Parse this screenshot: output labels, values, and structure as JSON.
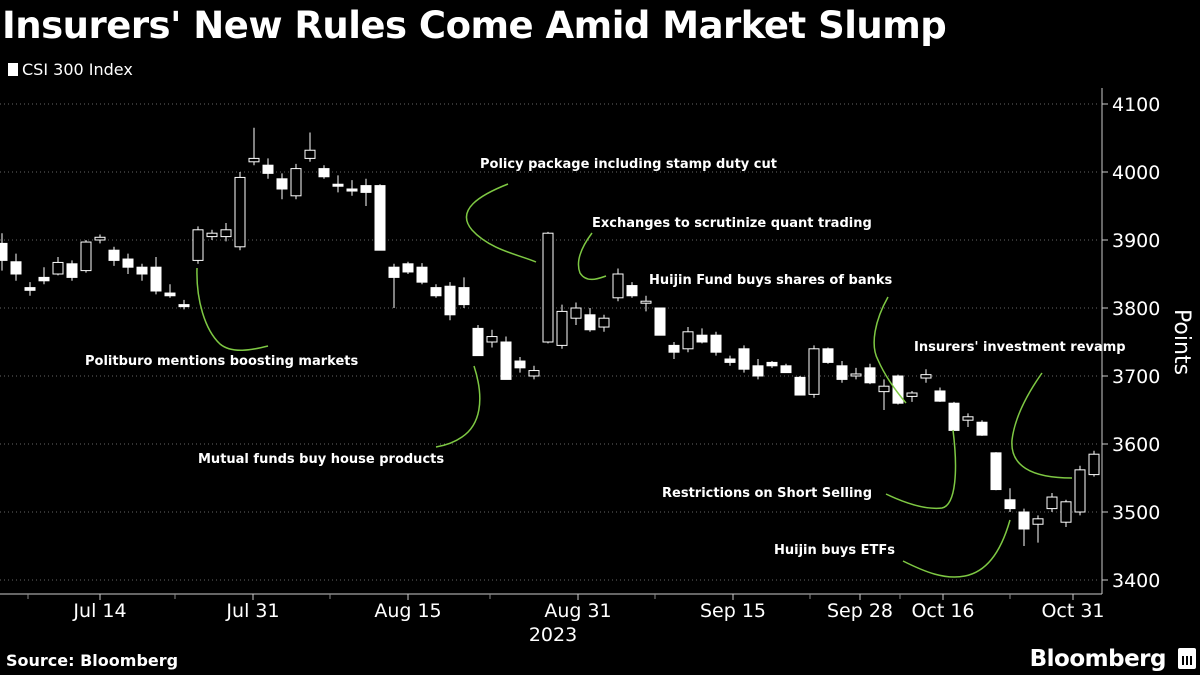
{
  "chart_data": {
    "type": "candlestick",
    "title": "Insurers' New Rules Come Amid Market Slump",
    "legend": [
      {
        "name": "CSI 300 Index",
        "color": "#ffffff"
      }
    ],
    "ylabel": "Points",
    "ylim": [
      3380,
      4120
    ],
    "yticks": [
      3400,
      3500,
      3600,
      3700,
      3800,
      3900,
      4000,
      4100
    ],
    "xlabels": [
      "Jul 14",
      "Jul 31",
      "Aug 15",
      "Aug 31",
      "Sep 15",
      "Sep 28",
      "Oct 16",
      "Oct 31"
    ],
    "xlabel_year": "2023",
    "candles": [
      {
        "o": 3895,
        "h": 3910,
        "l": 3855,
        "c": 3870
      },
      {
        "o": 3868,
        "h": 3880,
        "l": 3840,
        "c": 3850
      },
      {
        "o": 3830,
        "h": 3838,
        "l": 3818,
        "c": 3826
      },
      {
        "o": 3845,
        "h": 3860,
        "l": 3835,
        "c": 3840
      },
      {
        "o": 3850,
        "h": 3875,
        "l": 3848,
        "c": 3867
      },
      {
        "o": 3865,
        "h": 3870,
        "l": 3840,
        "c": 3845
      },
      {
        "o": 3855,
        "h": 3900,
        "l": 3852,
        "c": 3897
      },
      {
        "o": 3900,
        "h": 3908,
        "l": 3895,
        "c": 3904
      },
      {
        "o": 3885,
        "h": 3890,
        "l": 3862,
        "c": 3870
      },
      {
        "o": 3872,
        "h": 3880,
        "l": 3850,
        "c": 3860
      },
      {
        "o": 3860,
        "h": 3865,
        "l": 3840,
        "c": 3850
      },
      {
        "o": 3860,
        "h": 3875,
        "l": 3820,
        "c": 3825
      },
      {
        "o": 3822,
        "h": 3835,
        "l": 3815,
        "c": 3818
      },
      {
        "o": 3805,
        "h": 3812,
        "l": 3798,
        "c": 3802
      },
      {
        "o": 3870,
        "h": 3920,
        "l": 3865,
        "c": 3915
      },
      {
        "o": 3905,
        "h": 3915,
        "l": 3900,
        "c": 3910
      },
      {
        "o": 3905,
        "h": 3925,
        "l": 3898,
        "c": 3915
      },
      {
        "o": 3890,
        "h": 4000,
        "l": 3885,
        "c": 3992
      },
      {
        "o": 4015,
        "h": 4065,
        "l": 4010,
        "c": 4020
      },
      {
        "o": 4010,
        "h": 4020,
        "l": 3990,
        "c": 3998
      },
      {
        "o": 3990,
        "h": 3998,
        "l": 3960,
        "c": 3975
      },
      {
        "o": 3965,
        "h": 4012,
        "l": 3960,
        "c": 4005
      },
      {
        "o": 4020,
        "h": 4058,
        "l": 4015,
        "c": 4032
      },
      {
        "o": 4005,
        "h": 4010,
        "l": 3990,
        "c": 3993
      },
      {
        "o": 3982,
        "h": 3995,
        "l": 3970,
        "c": 3980
      },
      {
        "o": 3975,
        "h": 3988,
        "l": 3965,
        "c": 3972
      },
      {
        "o": 3980,
        "h": 3990,
        "l": 3950,
        "c": 3970
      },
      {
        "o": 3980,
        "h": 3982,
        "l": 3885,
        "c": 3885
      },
      {
        "o": 3860,
        "h": 3865,
        "l": 3800,
        "c": 3845
      },
      {
        "o": 3865,
        "h": 3868,
        "l": 3850,
        "c": 3853
      },
      {
        "o": 3860,
        "h": 3866,
        "l": 3835,
        "c": 3838
      },
      {
        "o": 3830,
        "h": 3835,
        "l": 3815,
        "c": 3818
      },
      {
        "o": 3832,
        "h": 3838,
        "l": 3782,
        "c": 3790
      },
      {
        "o": 3830,
        "h": 3845,
        "l": 3800,
        "c": 3805
      },
      {
        "o": 3770,
        "h": 3775,
        "l": 3730,
        "c": 3730
      },
      {
        "o": 3750,
        "h": 3768,
        "l": 3742,
        "c": 3758
      },
      {
        "o": 3750,
        "h": 3758,
        "l": 3695,
        "c": 3695
      },
      {
        "o": 3722,
        "h": 3728,
        "l": 3705,
        "c": 3712
      },
      {
        "o": 3700,
        "h": 3715,
        "l": 3695,
        "c": 3708
      },
      {
        "o": 3750,
        "h": 3912,
        "l": 3748,
        "c": 3910
      },
      {
        "o": 3745,
        "h": 3805,
        "l": 3740,
        "c": 3795
      },
      {
        "o": 3785,
        "h": 3808,
        "l": 3775,
        "c": 3800
      },
      {
        "o": 3790,
        "h": 3800,
        "l": 3765,
        "c": 3768
      },
      {
        "o": 3772,
        "h": 3790,
        "l": 3765,
        "c": 3785
      },
      {
        "o": 3815,
        "h": 3858,
        "l": 3810,
        "c": 3850
      },
      {
        "o": 3833,
        "h": 3838,
        "l": 3815,
        "c": 3818
      },
      {
        "o": 3810,
        "h": 3818,
        "l": 3795,
        "c": 3810
      },
      {
        "o": 3800,
        "h": 3800,
        "l": 3760,
        "c": 3760
      },
      {
        "o": 3745,
        "h": 3750,
        "l": 3725,
        "c": 3735
      },
      {
        "o": 3740,
        "h": 3772,
        "l": 3735,
        "c": 3765
      },
      {
        "o": 3760,
        "h": 3770,
        "l": 3748,
        "c": 3750
      },
      {
        "o": 3760,
        "h": 3765,
        "l": 3730,
        "c": 3735
      },
      {
        "o": 3725,
        "h": 3730,
        "l": 3715,
        "c": 3720
      },
      {
        "o": 3740,
        "h": 3745,
        "l": 3705,
        "c": 3710
      },
      {
        "o": 3715,
        "h": 3725,
        "l": 3695,
        "c": 3700
      },
      {
        "o": 3720,
        "h": 3722,
        "l": 3712,
        "c": 3715
      },
      {
        "o": 3715,
        "h": 3718,
        "l": 3705,
        "c": 3705
      },
      {
        "o": 3698,
        "h": 3700,
        "l": 3672,
        "c": 3672
      },
      {
        "o": 3673,
        "h": 3745,
        "l": 3668,
        "c": 3740
      },
      {
        "o": 3740,
        "h": 3742,
        "l": 3718,
        "c": 3720
      },
      {
        "o": 3715,
        "h": 3722,
        "l": 3690,
        "c": 3695
      },
      {
        "o": 3700,
        "h": 3712,
        "l": 3695,
        "c": 3703
      },
      {
        "o": 3712,
        "h": 3718,
        "l": 3688,
        "c": 3690
      },
      {
        "o": 3677,
        "h": 3695,
        "l": 3650,
        "c": 3685
      },
      {
        "o": 3700,
        "h": 3702,
        "l": 3658,
        "c": 3660
      },
      {
        "o": 3670,
        "h": 3678,
        "l": 3662,
        "c": 3675
      },
      {
        "o": 3697,
        "h": 3710,
        "l": 3690,
        "c": 3702
      },
      {
        "o": 3678,
        "h": 3683,
        "l": 3662,
        "c": 3663
      },
      {
        "o": 3660,
        "h": 3662,
        "l": 3620,
        "c": 3620
      },
      {
        "o": 3635,
        "h": 3645,
        "l": 3625,
        "c": 3640
      },
      {
        "o": 3632,
        "h": 3635,
        "l": 3612,
        "c": 3613
      },
      {
        "o": 3587,
        "h": 3588,
        "l": 3532,
        "c": 3533
      },
      {
        "o": 3518,
        "h": 3535,
        "l": 3500,
        "c": 3505
      },
      {
        "o": 3500,
        "h": 3505,
        "l": 3450,
        "c": 3475
      },
      {
        "o": 3482,
        "h": 3495,
        "l": 3455,
        "c": 3490
      },
      {
        "o": 3505,
        "h": 3528,
        "l": 3500,
        "c": 3522
      },
      {
        "o": 3485,
        "h": 3518,
        "l": 3478,
        "c": 3515
      },
      {
        "o": 3500,
        "h": 3568,
        "l": 3495,
        "c": 3562
      },
      {
        "o": 3555,
        "h": 3590,
        "l": 3552,
        "c": 3585
      }
    ],
    "annotations": [
      {
        "text": "Politburo mentions boosting markets"
      },
      {
        "text": "Mutual funds buy house products"
      },
      {
        "text": "Policy package including stamp duty cut"
      },
      {
        "text": "Exchanges to scrutinize quant trading"
      },
      {
        "text": "Huijin Fund buys shares of banks"
      },
      {
        "text": "Insurers' investment revamp"
      },
      {
        "text": "Restrictions on Short Selling"
      },
      {
        "text": "Huijin buys ETFs"
      }
    ]
  },
  "source_label": "Source: Bloomberg",
  "brand_label": "Bloomberg",
  "colors": {
    "background": "#000000",
    "candle": "#ffffff",
    "callout": "#7ec843"
  }
}
